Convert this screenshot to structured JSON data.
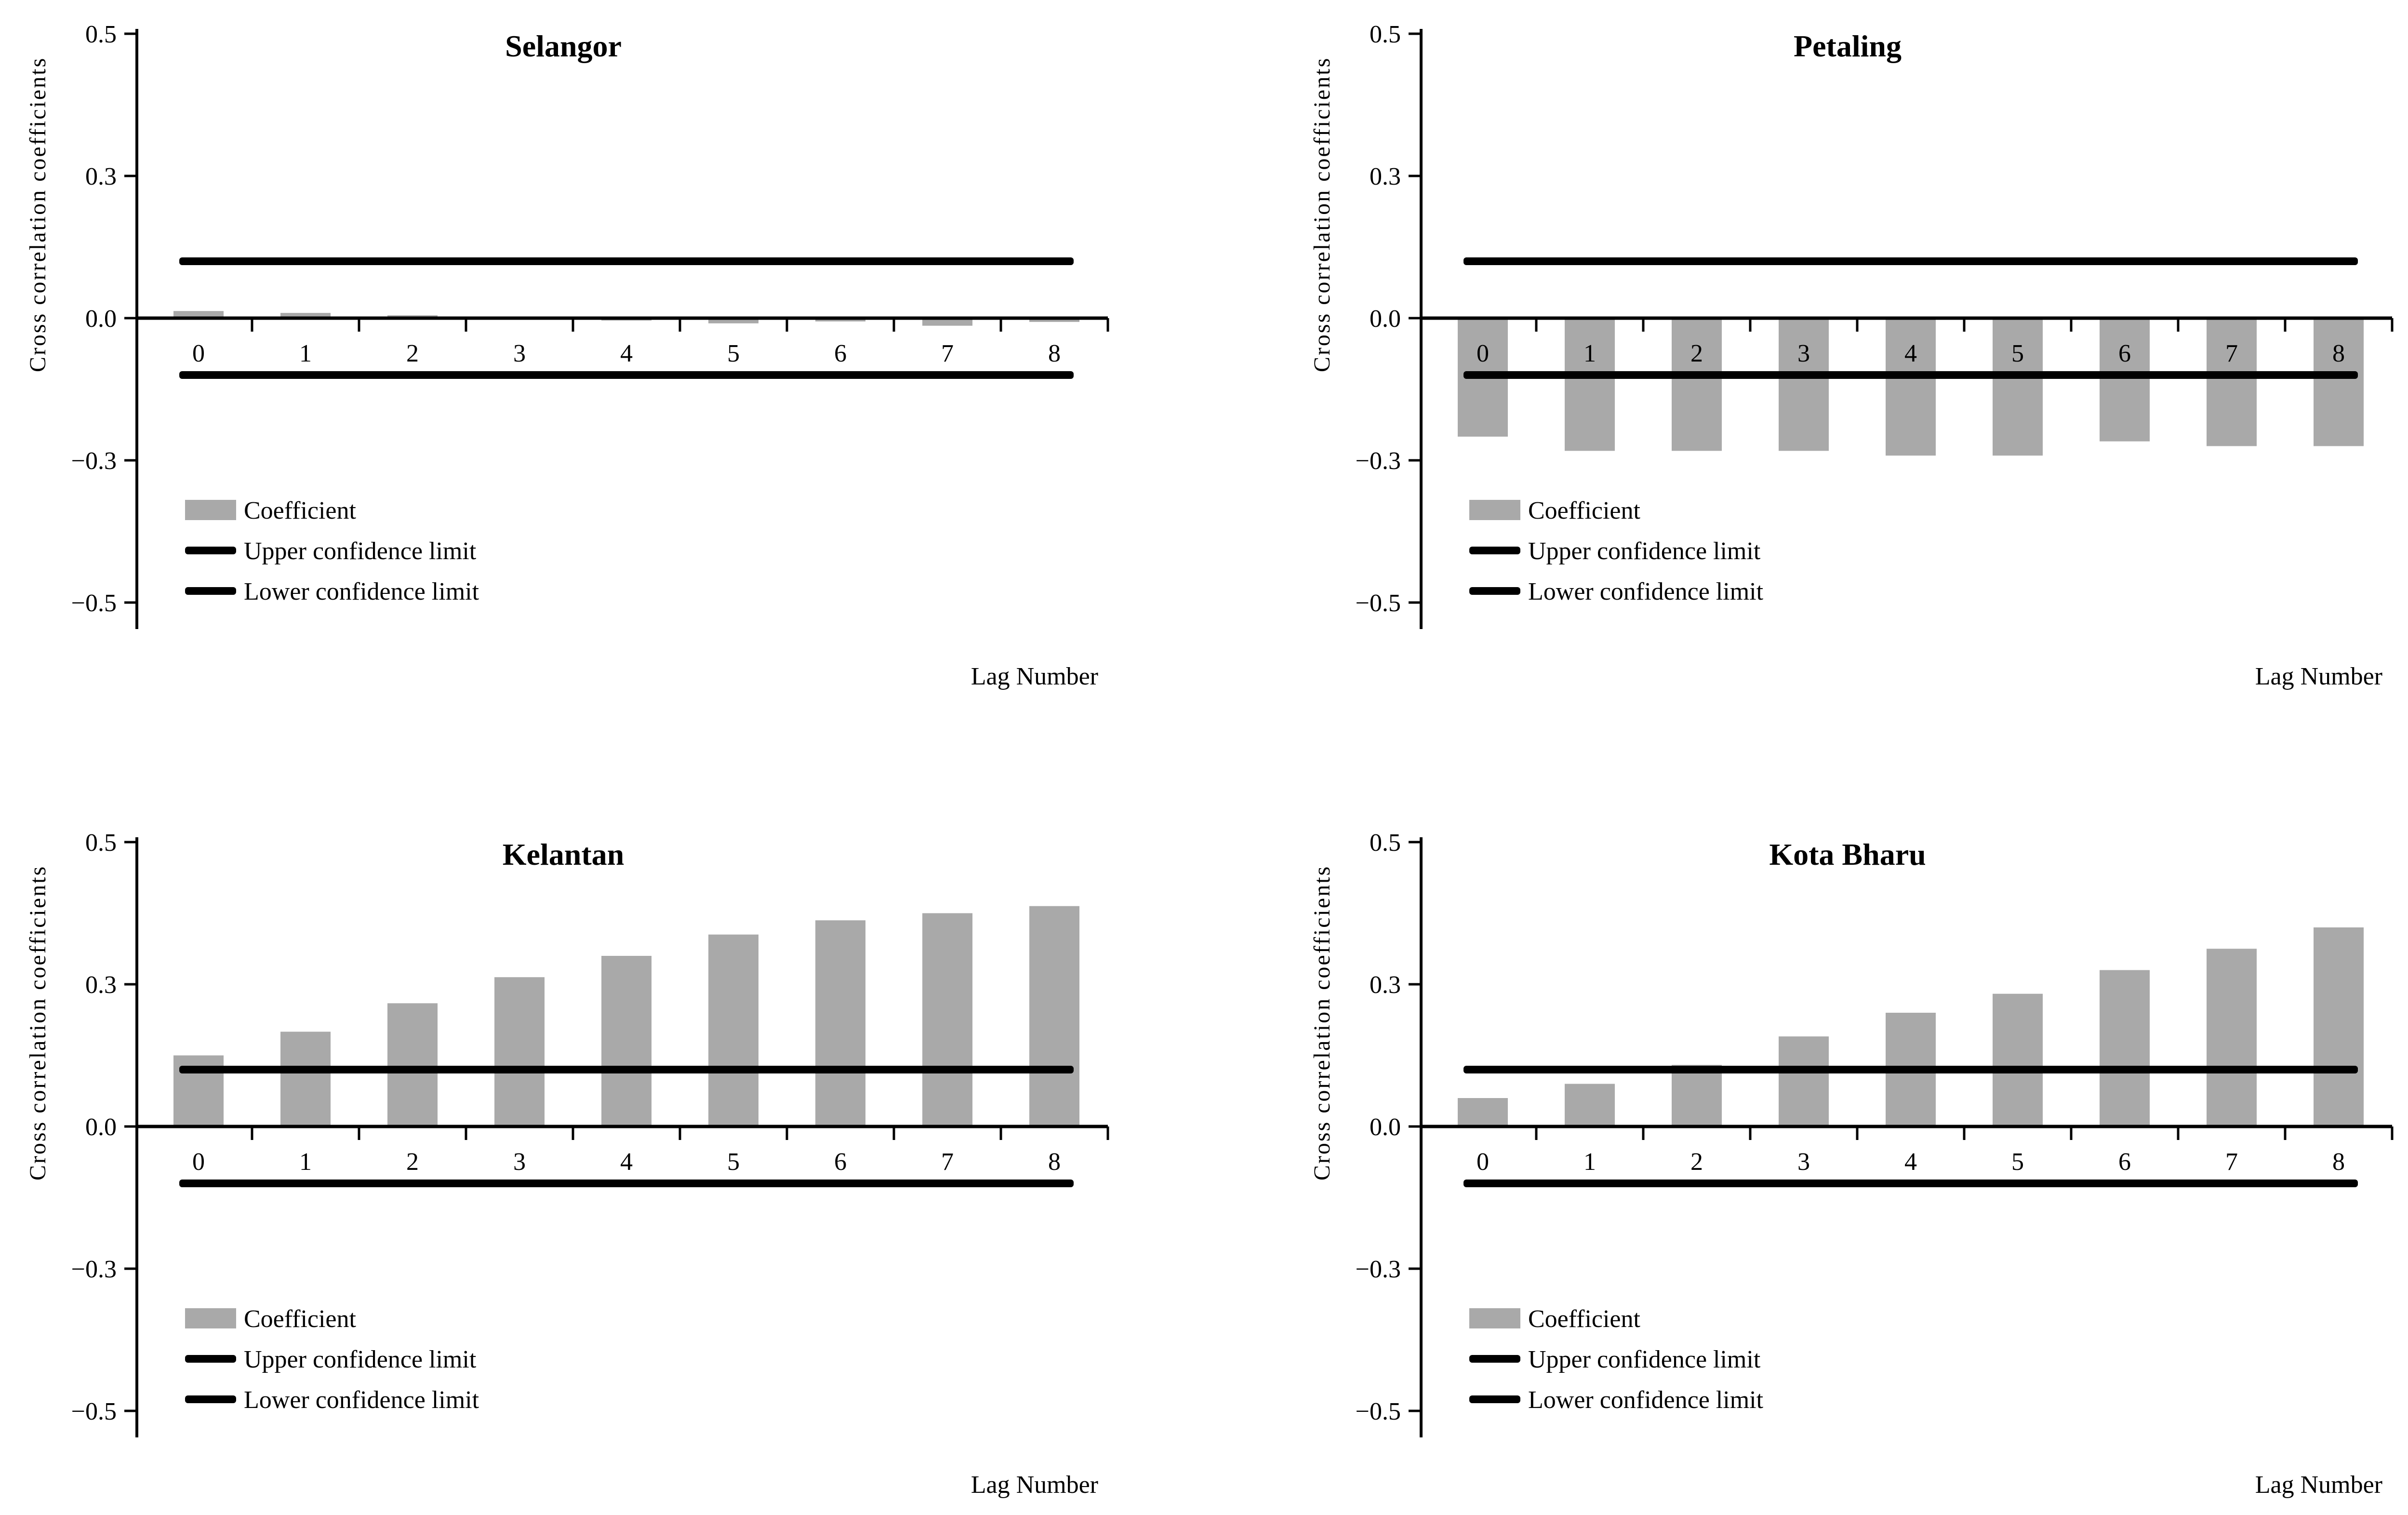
{
  "figure": {
    "background": "#ffffff",
    "description": "2x2 grid of cross-correlation bar charts for four Malaysian locations"
  },
  "colors": {
    "bar": "#a9a9a9",
    "line": "#000000",
    "text": "#000000",
    "background": "#ffffff"
  },
  "legend": {
    "coefficient": "Coefficient",
    "upper": "Upper confidence limit",
    "lower": "Lower confidence limit"
  },
  "axis": {
    "ylabel": "Cross correlation  coefficients",
    "xlabel": "Lag Number",
    "y_tick_labels": [
      "0.5",
      "0.3",
      "0.0",
      "−0.3",
      "−0.5"
    ],
    "lag_labels": [
      "0",
      "1",
      "2",
      "3",
      "4",
      "5",
      "6",
      "7",
      "8"
    ]
  },
  "chart_data": [
    {
      "type": "bar",
      "title": "Selangor",
      "xlabel": "Lag Number",
      "ylabel": "Cross correlation coefficients",
      "categories": [
        0,
        1,
        2,
        3,
        4,
        5,
        6,
        7,
        8
      ],
      "values": [
        0.015,
        0.011,
        0.006,
        0.0,
        -0.005,
        -0.011,
        -0.007,
        -0.016,
        -0.008
      ],
      "upper_confidence_limit": 0.12,
      "lower_confidence_limit": -0.12,
      "y_ticks": [
        0.5,
        0.3,
        0.0,
        -0.3,
        -0.5
      ],
      "y_ticks_equally_spaced": true,
      "ylim": [
        -0.5,
        0.5
      ],
      "grid": false,
      "legend_position": "inside lower-left"
    },
    {
      "type": "bar",
      "title": "Petaling",
      "xlabel": "Lag Number",
      "ylabel": "Cross correlation coefficients",
      "categories": [
        0,
        1,
        2,
        3,
        4,
        5,
        6,
        7,
        8
      ],
      "values": [
        -0.25,
        -0.28,
        -0.28,
        -0.28,
        -0.29,
        -0.29,
        -0.26,
        -0.27,
        -0.27
      ],
      "upper_confidence_limit": 0.12,
      "lower_confidence_limit": -0.12,
      "y_ticks": [
        0.5,
        0.3,
        0.0,
        -0.3,
        -0.5
      ],
      "y_ticks_equally_spaced": true,
      "ylim": [
        -0.5,
        0.5
      ],
      "grid": false,
      "legend_position": "inside lower-left"
    },
    {
      "type": "bar",
      "title": "Kelantan",
      "xlabel": "Lag Number",
      "ylabel": "Cross correlation coefficients",
      "categories": [
        0,
        1,
        2,
        3,
        4,
        5,
        6,
        7,
        8
      ],
      "values": [
        0.15,
        0.2,
        0.26,
        0.31,
        0.34,
        0.37,
        0.39,
        0.4,
        0.41
      ],
      "upper_confidence_limit": 0.12,
      "lower_confidence_limit": -0.12,
      "y_ticks": [
        0.5,
        0.3,
        0.0,
        -0.3,
        -0.5
      ],
      "y_ticks_equally_spaced": true,
      "ylim": [
        -0.5,
        0.5
      ],
      "grid": false,
      "legend_position": "inside lower-left"
    },
    {
      "type": "bar",
      "title": "Kota Bharu",
      "xlabel": "Lag Number",
      "ylabel": "Cross correlation coefficients",
      "categories": [
        0,
        1,
        2,
        3,
        4,
        5,
        6,
        7,
        8
      ],
      "values": [
        0.06,
        0.09,
        0.13,
        0.19,
        0.24,
        0.28,
        0.32,
        0.35,
        0.38
      ],
      "upper_confidence_limit": 0.12,
      "lower_confidence_limit": -0.12,
      "y_ticks": [
        0.5,
        0.3,
        0.0,
        -0.3,
        -0.5
      ],
      "y_ticks_equally_spaced": true,
      "ylim": [
        -0.5,
        0.5
      ],
      "grid": false,
      "legend_position": "inside lower-left"
    }
  ]
}
